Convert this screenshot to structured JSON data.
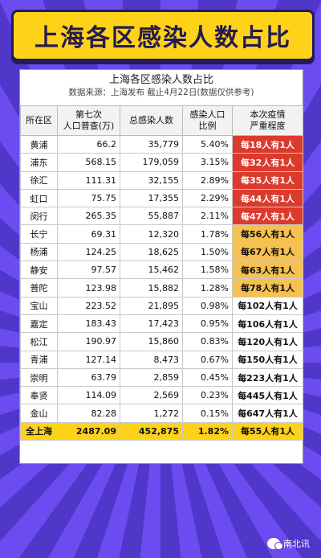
{
  "banner": {
    "title": "上海各区感染人数占比"
  },
  "card": {
    "title": "上海各区感染人数占比",
    "source": "数据来源：上海发布 截止4月22日(数据仅供参考)"
  },
  "table": {
    "headers": [
      "所在区",
      "第七次\n人口普查(万)",
      "总感染人数",
      "感染人口\n比例",
      "本次疫情\n严重程度"
    ],
    "rows": [
      {
        "district": "黄浦",
        "population": "66.2",
        "infected": "35,779",
        "ratio": "5.40%",
        "severity": "每18人有1人",
        "level": "red"
      },
      {
        "district": "浦东",
        "population": "568.15",
        "infected": "179,059",
        "ratio": "3.15%",
        "severity": "每32人有1人",
        "level": "red"
      },
      {
        "district": "徐汇",
        "population": "111.31",
        "infected": "32,155",
        "ratio": "2.89%",
        "severity": "每35人有1人",
        "level": "red"
      },
      {
        "district": "虹口",
        "population": "75.75",
        "infected": "17,355",
        "ratio": "2.29%",
        "severity": "每44人有1人",
        "level": "red"
      },
      {
        "district": "闵行",
        "population": "265.35",
        "infected": "55,887",
        "ratio": "2.11%",
        "severity": "每47人有1人",
        "level": "red"
      },
      {
        "district": "长宁",
        "population": "69.31",
        "infected": "12,320",
        "ratio": "1.78%",
        "severity": "每56人有1人",
        "level": "orange"
      },
      {
        "district": "杨浦",
        "population": "124.25",
        "infected": "18,625",
        "ratio": "1.50%",
        "severity": "每67人有1人",
        "level": "orange"
      },
      {
        "district": "静安",
        "population": "97.57",
        "infected": "15,462",
        "ratio": "1.58%",
        "severity": "每63人有1人",
        "level": "orange"
      },
      {
        "district": "普陀",
        "population": "123.98",
        "infected": "15,882",
        "ratio": "1.28%",
        "severity": "每78人有1人",
        "level": "orange"
      },
      {
        "district": "宝山",
        "population": "223.52",
        "infected": "21,895",
        "ratio": "0.98%",
        "severity": "每102人有1人",
        "level": "none"
      },
      {
        "district": "嘉定",
        "population": "183.43",
        "infected": "17,423",
        "ratio": "0.95%",
        "severity": "每106人有1人",
        "level": "none"
      },
      {
        "district": "松江",
        "population": "190.97",
        "infected": "15,860",
        "ratio": "0.83%",
        "severity": "每120人有1人",
        "level": "none"
      },
      {
        "district": "青浦",
        "population": "127.14",
        "infected": "8,473",
        "ratio": "0.67%",
        "severity": "每150人有1人",
        "level": "none"
      },
      {
        "district": "崇明",
        "population": "63.79",
        "infected": "2,859",
        "ratio": "0.45%",
        "severity": "每223人有1人",
        "level": "none"
      },
      {
        "district": "奉贤",
        "population": "114.09",
        "infected": "2,569",
        "ratio": "0.23%",
        "severity": "每445人有1人",
        "level": "none"
      },
      {
        "district": "金山",
        "population": "82.28",
        "infected": "1,272",
        "ratio": "0.15%",
        "severity": "每647人有1人",
        "level": "none"
      }
    ],
    "total": {
      "district": "全上海",
      "population": "2487.09",
      "infected": "452,875",
      "ratio": "1.82%",
      "severity": "每55人有1人"
    }
  },
  "colors": {
    "red": "#dc3a2c",
    "orange": "#f6c14e",
    "banner": "#ffd21a",
    "background": "#5a3fd6"
  },
  "watermark": {
    "icon": "wechat-icon",
    "label": "南北讯"
  }
}
